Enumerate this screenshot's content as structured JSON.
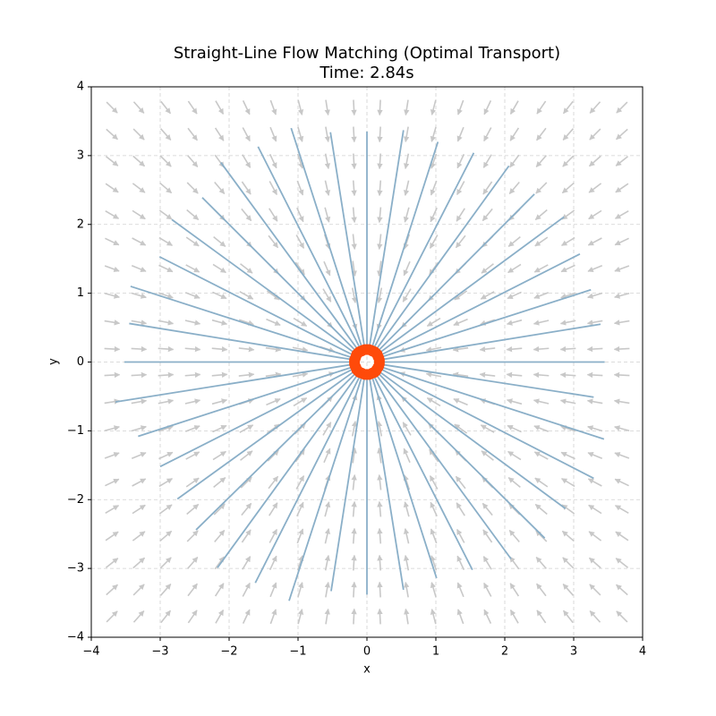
{
  "chart_data": {
    "type": "flow",
    "title": "Straight-Line Flow Matching (Optimal Transport)",
    "subtitle": "Time: 2.84s",
    "x_label": "x",
    "y_label": "y",
    "xlim": [
      -4,
      4
    ],
    "ylim": [
      -4,
      4
    ],
    "xticks": [
      {
        "value": -4,
        "label": "−4"
      },
      {
        "value": -3,
        "label": "−3"
      },
      {
        "value": -2,
        "label": "−2"
      },
      {
        "value": -1,
        "label": "−1"
      },
      0,
      1,
      2,
      3,
      4
    ],
    "yticks": [
      {
        "value": -4,
        "label": "−4"
      },
      {
        "value": -3,
        "label": "−3"
      },
      {
        "value": -2,
        "label": "−2"
      },
      {
        "value": -1,
        "label": "−1"
      },
      0,
      1,
      2,
      3,
      4
    ],
    "grid": true,
    "quiver": {
      "color": "#c8c8c8",
      "x": [
        -3.7,
        -3.31,
        -2.92,
        -2.53,
        -2.14,
        -1.75,
        -1.36,
        -0.97,
        -0.58,
        -0.19,
        0.19,
        0.58,
        0.97,
        1.36,
        1.75,
        2.14,
        2.53,
        2.92,
        3.31,
        3.7
      ],
      "y": [
        -3.7,
        -3.31,
        -2.92,
        -2.53,
        -2.14,
        -1.75,
        -1.36,
        -0.97,
        -0.58,
        -0.19,
        0.19,
        0.58,
        0.97,
        1.36,
        1.75,
        2.14,
        2.53,
        2.92,
        3.31,
        3.7
      ]
    },
    "paths": {
      "color": "#8aafc8",
      "x_start": [
        0,
        0.53,
        1.03,
        1.55,
        2.06,
        2.43,
        2.86,
        3.09,
        3.25,
        3.39,
        3.45,
        3.29,
        3.44,
        3.29,
        2.88,
        2.58,
        2.09,
        1.53,
        1.01,
        0.53,
        0,
        -0.52,
        -1.13,
        -1.62,
        -2.17,
        -2.48,
        -2.75,
        -3.0,
        -3.32,
        -3.65,
        -3.52,
        -3.45,
        -3.43,
        -3.01,
        -2.83,
        -2.39,
        -2.12,
        -1.58,
        -1.1,
        -0.53
      ],
      "y_start": [
        3.35,
        3.37,
        3.2,
        3.04,
        2.85,
        2.44,
        2.11,
        1.57,
        1.05,
        0.55,
        0,
        -0.51,
        -1.12,
        -1.69,
        -2.13,
        -2.56,
        -2.86,
        -3.02,
        -3.14,
        -3.31,
        -3.38,
        -3.33,
        -3.47,
        -3.21,
        -2.99,
        -2.44,
        -1.99,
        -1.52,
        -1.08,
        -0.58,
        0,
        0.56,
        1.1,
        1.53,
        2.07,
        2.39,
        2.9,
        3.13,
        3.4,
        3.34
      ]
    },
    "points": {
      "color": "#ff4a0a",
      "x": [
        0,
        0.03,
        0.06,
        0.08,
        0.11,
        0.13,
        0.15,
        0.16,
        0.17,
        0.18,
        0.18,
        0.18,
        0.17,
        0.16,
        0.14,
        0.13,
        0.11,
        0.08,
        0.06,
        0.03,
        0,
        -0.03,
        -0.06,
        -0.08,
        -0.11,
        -0.13,
        -0.15,
        -0.16,
        -0.17,
        -0.18,
        -0.18,
        -0.18,
        -0.17,
        -0.16,
        -0.15,
        -0.13,
        -0.11,
        -0.08,
        -0.06,
        -0.03
      ],
      "y": [
        0.18,
        0.18,
        0.17,
        0.16,
        0.15,
        0.13,
        0.11,
        0.08,
        0.06,
        0.03,
        0,
        -0.03,
        -0.06,
        -0.08,
        -0.11,
        -0.13,
        -0.15,
        -0.16,
        -0.17,
        -0.18,
        -0.18,
        -0.18,
        -0.17,
        -0.16,
        -0.15,
        -0.13,
        -0.11,
        -0.08,
        -0.06,
        -0.03,
        0,
        0.03,
        0.05,
        0.08,
        0.11,
        0.13,
        0.15,
        0.16,
        0.17,
        0.18
      ]
    }
  }
}
